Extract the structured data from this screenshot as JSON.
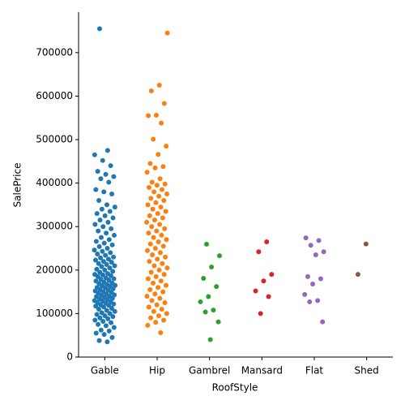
{
  "chart_data": {
    "type": "strip",
    "xlabel": "RoofStyle",
    "ylabel": "SalePrice",
    "categories": [
      "Gable",
      "Hip",
      "Gambrel",
      "Mansard",
      "Flat",
      "Shed"
    ],
    "colors": [
      "#1f77b4",
      "#ff7f0e",
      "#2ca02c",
      "#d62728",
      "#9467bd",
      "#8c564b"
    ],
    "values": [
      [
        35000,
        38000,
        45000,
        52000,
        55000,
        60000,
        62000,
        68000,
        72000,
        75000,
        79000,
        82000,
        85000,
        88000,
        90000,
        93000,
        95000,
        98000,
        100000,
        102000,
        105000,
        107000,
        110000,
        112000,
        115000,
        117000,
        119000,
        120000,
        122000,
        124000,
        125000,
        127000,
        129000,
        130000,
        132000,
        134000,
        135000,
        137000,
        139000,
        140000,
        142000,
        143000,
        145000,
        147000,
        149000,
        150000,
        152000,
        154000,
        155000,
        157000,
        159000,
        160000,
        162000,
        164000,
        165000,
        167000,
        169000,
        170000,
        172000,
        175000,
        177000,
        179000,
        180000,
        182000,
        185000,
        187000,
        189000,
        190000,
        192000,
        195000,
        197000,
        200000,
        202000,
        205000,
        208000,
        210000,
        213000,
        215000,
        218000,
        220000,
        223000,
        225000,
        228000,
        230000,
        234000,
        237000,
        240000,
        243000,
        246000,
        250000,
        254000,
        258000,
        262000,
        266000,
        270000,
        275000,
        280000,
        285000,
        290000,
        295000,
        300000,
        305000,
        310000,
        315000,
        320000,
        325000,
        330000,
        335000,
        340000,
        345000,
        350000,
        360000,
        375000,
        380000,
        385000,
        402000,
        410000,
        415000,
        420000,
        427000,
        440000,
        452000,
        465000,
        475000,
        755000
      ],
      [
        745000,
        625000,
        612000,
        583000,
        556000,
        555000,
        538000,
        501000,
        485000,
        466000,
        445000,
        438000,
        435000,
        425000,
        410000,
        402000,
        398000,
        395000,
        390000,
        385000,
        380000,
        375000,
        370000,
        365000,
        360000,
        355000,
        350000,
        345000,
        340000,
        335000,
        330000,
        325000,
        320000,
        315000,
        310000,
        305000,
        300000,
        295000,
        290000,
        285000,
        280000,
        275000,
        270000,
        265000,
        260000,
        255000,
        250000,
        245000,
        240000,
        235000,
        230000,
        225000,
        220000,
        215000,
        210000,
        205000,
        200000,
        195000,
        190000,
        185000,
        180000,
        175000,
        170000,
        165000,
        160000,
        155000,
        150000,
        145000,
        140000,
        135000,
        130000,
        125000,
        120000,
        115000,
        110000,
        105000,
        100000,
        95000,
        90000,
        85000,
        80000,
        73000,
        56000
      ],
      [
        259500,
        233000,
        207000,
        181000,
        162000,
        139000,
        127000,
        108000,
        103500,
        81000,
        40000
      ],
      [
        265000,
        242000,
        190000,
        175000,
        152000,
        139000,
        100000
      ],
      [
        274000,
        268000,
        257000,
        242000,
        235000,
        185000,
        180000,
        168000,
        144000,
        130000,
        127000,
        81000
      ],
      [
        260000,
        190000
      ]
    ],
    "ylim": [
      0,
      793000
    ],
    "yticks": [
      0,
      100000,
      200000,
      300000,
      400000,
      500000,
      600000,
      700000
    ]
  }
}
